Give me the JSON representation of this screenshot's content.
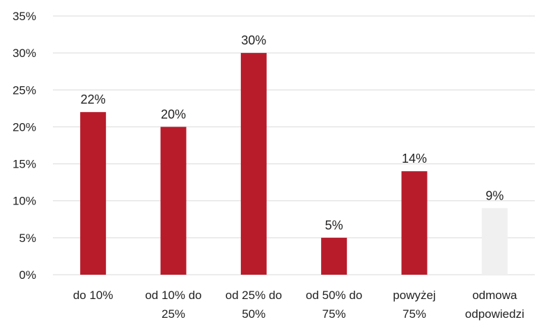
{
  "chart_data": {
    "type": "bar",
    "title": "",
    "xlabel": "",
    "ylabel": "",
    "ylim": [
      0,
      35
    ],
    "yticks": [
      "0%",
      "5%",
      "10%",
      "15%",
      "20%",
      "25%",
      "30%",
      "35%"
    ],
    "ytick_values": [
      0,
      5,
      10,
      15,
      20,
      25,
      30,
      35
    ],
    "categories": [
      [
        "do 10%"
      ],
      [
        "od 10% do",
        "25%"
      ],
      [
        "od 25% do",
        "50%"
      ],
      [
        "od 50% do",
        "75%"
      ],
      [
        "powyżej",
        "75%"
      ],
      [
        "odmowa",
        "odpowiedzi"
      ]
    ],
    "values": [
      22,
      20,
      30,
      5,
      14,
      9
    ],
    "data_labels": [
      "22%",
      "20%",
      "30%",
      "5%",
      "14%",
      "9%"
    ],
    "bar_colors": [
      "#b81c2b",
      "#b81c2b",
      "#b81c2b",
      "#b81c2b",
      "#b81c2b",
      "#f0f0f0"
    ],
    "grid": true,
    "legend": "none"
  }
}
